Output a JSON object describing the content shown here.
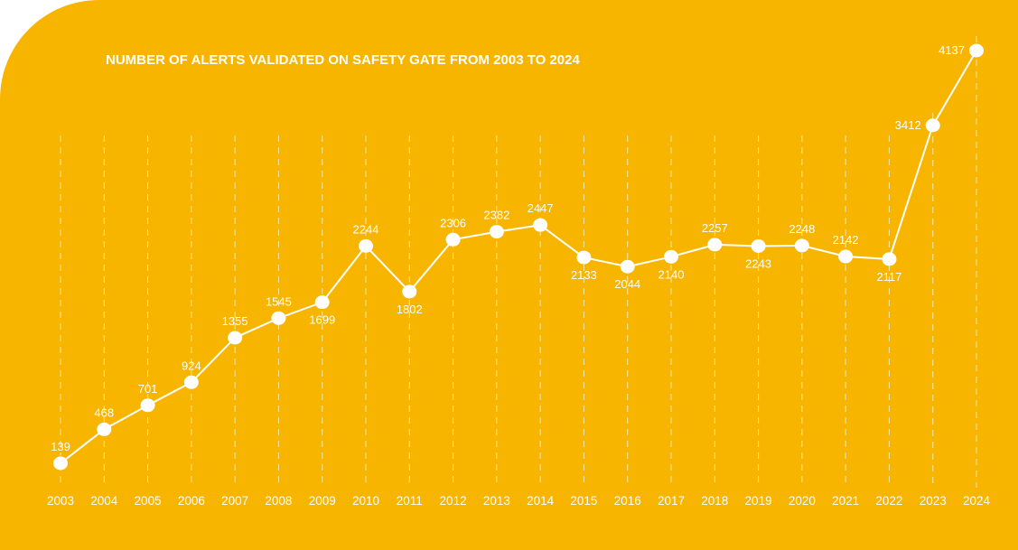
{
  "chart_data": {
    "type": "line",
    "title": "NUMBER OF ALERTS VALIDATED ON SAFETY GATE FROM 2003 TO 2024",
    "xlabel": "",
    "ylabel": "",
    "grid": true,
    "categories": [
      "2003",
      "2004",
      "2005",
      "2006",
      "2007",
      "2008",
      "2009",
      "2010",
      "2011",
      "2012",
      "2013",
      "2014",
      "2015",
      "2016",
      "2017",
      "2018",
      "2019",
      "2020",
      "2021",
      "2022",
      "2023",
      "2024"
    ],
    "values": [
      139,
      468,
      701,
      924,
      1355,
      1545,
      1699,
      2244,
      1802,
      2306,
      2382,
      2447,
      2133,
      2044,
      2140,
      2257,
      2243,
      2248,
      2142,
      2117,
      3412,
      4137
    ],
    "labels": [
      "139",
      "468",
      "701",
      "924",
      "1355",
      "1545",
      "1699",
      "2244",
      "1802",
      "2306",
      "2382",
      "2447",
      "2133",
      "2044",
      "2140",
      "2257",
      "2243",
      "2248",
      "2142",
      "2117",
      "3412",
      "4137"
    ],
    "label_positions": [
      "above",
      "above",
      "above",
      "above",
      "above",
      "above",
      "below",
      "above",
      "below",
      "above",
      "above",
      "above",
      "below",
      "below",
      "below",
      "above",
      "below",
      "above",
      "above",
      "below",
      "left",
      "left"
    ],
    "ylim": [
      0,
      4500
    ]
  },
  "colors": {
    "background": "#F8B500",
    "line": "#FFFFFF",
    "grid": "#FDE7A8",
    "text": "#FFFFFF"
  }
}
